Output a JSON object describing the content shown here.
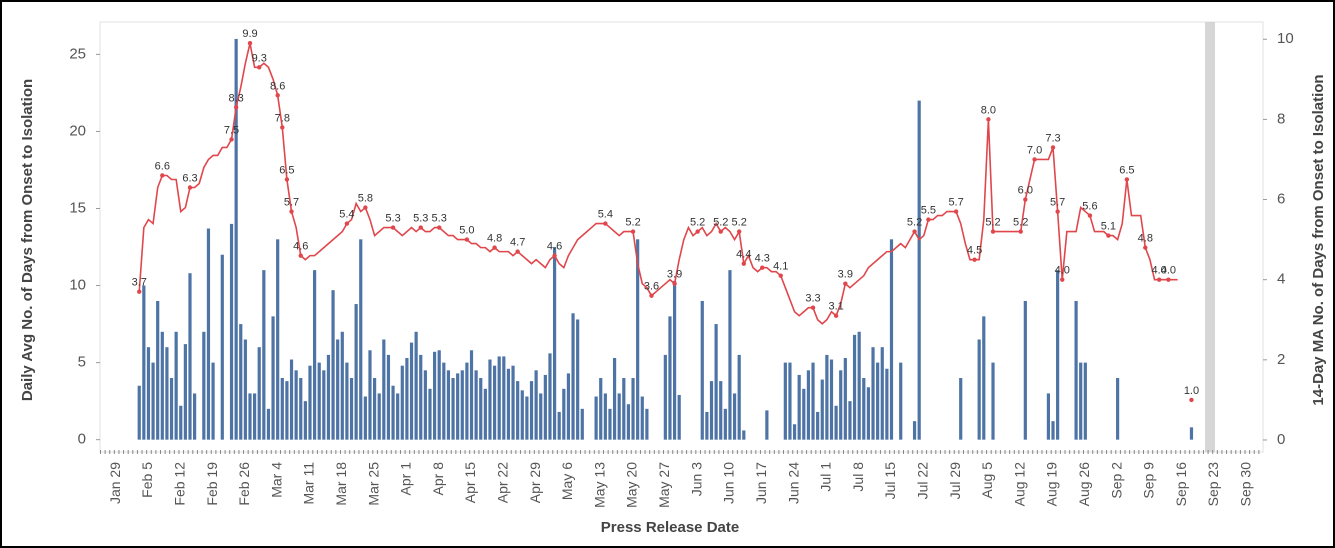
{
  "chart_data": {
    "type": "combo",
    "xlabel": "Press Release Date",
    "ylabel": "Daily Avg No. of Days from Onset to Isolation",
    "y2label": "14-Day MA No. of Days from Onset to Isolation",
    "ylim": [
      -0.8,
      27.1
    ],
    "yticks": [
      0,
      5,
      10,
      15,
      20,
      25
    ],
    "y2lim": [
      -0.3,
      10.43
    ],
    "y2ticks": [
      0,
      2,
      4,
      6,
      8,
      10
    ],
    "categories": [
      null,
      null,
      null,
      "Jan 29",
      null,
      null,
      null,
      null,
      null,
      null,
      "Feb 5",
      null,
      null,
      null,
      null,
      null,
      null,
      "Feb 12",
      null,
      null,
      null,
      null,
      null,
      null,
      "Feb 19",
      null,
      null,
      null,
      null,
      null,
      null,
      "Feb 26",
      null,
      null,
      null,
      null,
      null,
      null,
      "Mar 4",
      null,
      null,
      null,
      null,
      null,
      null,
      "Mar 11",
      null,
      null,
      null,
      null,
      null,
      null,
      "Mar 18",
      null,
      null,
      null,
      null,
      null,
      null,
      "Mar 25",
      null,
      null,
      null,
      null,
      null,
      null,
      "Apr 1",
      null,
      null,
      null,
      null,
      null,
      null,
      "Apr 8",
      null,
      null,
      null,
      null,
      null,
      null,
      "Apr 15",
      null,
      null,
      null,
      null,
      null,
      null,
      "Apr 22",
      null,
      null,
      null,
      null,
      null,
      null,
      "Apr 29",
      null,
      null,
      null,
      null,
      null,
      null,
      "May 6",
      null,
      null,
      null,
      null,
      null,
      null,
      "May 13",
      null,
      null,
      null,
      null,
      null,
      null,
      "May 20",
      null,
      null,
      null,
      null,
      null,
      null,
      "May 27",
      null,
      null,
      null,
      null,
      null,
      null,
      "Jun 3",
      null,
      null,
      null,
      null,
      null,
      null,
      "Jun 10",
      null,
      null,
      null,
      null,
      null,
      null,
      "Jun 17",
      null,
      null,
      null,
      null,
      null,
      null,
      "Jun 24",
      null,
      null,
      null,
      null,
      null,
      null,
      "Jul 1",
      null,
      null,
      null,
      null,
      null,
      null,
      "Jul 8",
      null,
      null,
      null,
      null,
      null,
      null,
      "Jul 15",
      null,
      null,
      null,
      null,
      null,
      null,
      "Jul 22",
      null,
      null,
      null,
      null,
      null,
      null,
      "Jul 29",
      null,
      null,
      null,
      null,
      null,
      null,
      "Aug 5",
      null,
      null,
      null,
      null,
      null,
      null,
      "Aug 12",
      null,
      null,
      null,
      null,
      null,
      null,
      "Aug 19",
      null,
      null,
      null,
      null,
      null,
      null,
      "Aug 26",
      null,
      null,
      null,
      null,
      null,
      null,
      "Sep 2",
      null,
      null,
      null,
      null,
      null,
      null,
      "Sep 9",
      null,
      null,
      null,
      null,
      null,
      null,
      "Sep 16",
      null,
      null,
      null,
      null,
      null,
      null,
      "Sep 23",
      null,
      null,
      null,
      null,
      null,
      null,
      "Sep 30",
      null,
      null,
      null
    ],
    "series": [
      {
        "type": "bar",
        "color": "#4e74a6",
        "values": [
          null,
          null,
          null,
          null,
          null,
          null,
          null,
          null,
          3.5,
          10,
          6,
          5,
          9,
          7,
          6,
          4,
          7,
          2.2,
          6.2,
          10.8,
          3,
          null,
          7,
          13.7,
          5,
          null,
          12,
          null,
          14,
          26,
          7.5,
          6.5,
          3,
          3,
          6,
          11,
          2,
          8,
          13,
          4,
          3.8,
          5.2,
          4.5,
          4,
          2.5,
          4.8,
          11,
          5,
          4.5,
          5.5,
          9.7,
          6.5,
          7,
          5,
          4,
          8.8,
          13,
          2.8,
          5.8,
          4,
          3,
          6.5,
          5.5,
          3.5,
          3,
          4.8,
          5.3,
          6.3,
          7,
          5.5,
          4.5,
          3.3,
          5.7,
          5.8,
          5,
          4.5,
          4,
          4.3,
          4.5,
          5,
          5.8,
          4.5,
          4,
          3.3,
          5.2,
          4.8,
          5.4,
          5.4,
          4.6,
          4.8,
          3.8,
          3.2,
          2.8,
          3.8,
          4.5,
          3,
          4.2,
          5.6,
          12.5,
          1.8,
          3.3,
          4.3,
          8.2,
          7.8,
          2,
          null,
          null,
          2.8,
          4,
          3,
          2,
          5.3,
          3,
          4,
          2.3,
          4,
          13,
          2.8,
          2,
          null,
          null,
          null,
          5.5,
          8,
          10.3,
          2.9,
          null,
          null,
          null,
          null,
          9,
          1.8,
          3.8,
          7.5,
          3.8,
          2,
          11,
          3,
          5.5,
          0.6,
          null,
          null,
          null,
          null,
          1.9,
          null,
          null,
          null,
          5,
          5,
          1,
          4.2,
          3.3,
          4.5,
          5,
          1.8,
          3.9,
          5.5,
          5.2,
          2.2,
          4.5,
          5.3,
          2.5,
          6.8,
          7,
          4,
          3.4,
          6,
          5,
          6,
          4.6,
          13,
          null,
          5,
          null,
          null,
          1.2,
          22,
          null,
          null,
          null,
          null,
          null,
          null,
          null,
          null,
          4,
          null,
          null,
          null,
          6.5,
          8,
          null,
          5,
          null,
          null,
          null,
          null,
          null,
          null,
          9,
          null,
          null,
          null,
          null,
          3,
          1.2,
          11,
          null,
          null,
          null,
          9,
          5,
          5,
          null,
          null,
          null,
          null,
          null,
          null,
          4,
          null,
          null,
          null,
          null,
          null,
          null,
          null,
          null,
          null,
          null,
          null,
          null,
          null,
          null,
          null,
          0.8,
          null,
          null,
          null,
          null,
          null,
          null,
          null,
          null,
          null,
          null,
          null,
          null,
          null,
          null,
          null
        ]
      },
      {
        "type": "line",
        "axis": "y2",
        "color": "#e0474c",
        "values": [
          null,
          null,
          null,
          null,
          null,
          null,
          null,
          null,
          3.7,
          5.3,
          5.5,
          5.4,
          6.3,
          6.6,
          6.6,
          6.5,
          6.5,
          5.7,
          5.8,
          6.3,
          6.3,
          6.4,
          6.8,
          7.0,
          7.1,
          7.1,
          7.3,
          7.3,
          7.5,
          8.3,
          8.8,
          9.4,
          9.9,
          9.3,
          9.3,
          9.4,
          9.3,
          9.0,
          8.6,
          7.8,
          6.5,
          5.7,
          5.3,
          4.6,
          4.5,
          4.6,
          4.6,
          4.7,
          4.8,
          4.9,
          5.0,
          5.1,
          5.2,
          5.4,
          5.5,
          5.9,
          5.7,
          5.8,
          5.5,
          5.1,
          5.2,
          5.3,
          5.3,
          5.3,
          5.2,
          5.1,
          5.2,
          5.3,
          5.2,
          5.3,
          5.2,
          5.2,
          5.3,
          5.3,
          5.2,
          5.1,
          5.1,
          5.0,
          5.0,
          5.0,
          4.9,
          4.9,
          4.8,
          4.8,
          4.7,
          4.8,
          4.7,
          4.7,
          4.7,
          4.6,
          4.7,
          4.6,
          4.5,
          4.4,
          4.5,
          4.4,
          4.3,
          4.5,
          4.6,
          4.4,
          4.3,
          4.6,
          4.8,
          5.0,
          5.1,
          5.2,
          5.3,
          5.4,
          5.4,
          5.4,
          5.3,
          5.2,
          5.1,
          5.2,
          5.2,
          5.2,
          4.4,
          3.9,
          3.8,
          3.6,
          3.7,
          3.8,
          3.9,
          4.0,
          3.9,
          4.5,
          5.0,
          5.3,
          5.1,
          5.2,
          5.3,
          5.1,
          5.2,
          5.4,
          5.2,
          5.3,
          5.2,
          5.0,
          5.2,
          4.4,
          4.6,
          4.3,
          4.2,
          4.3,
          4.3,
          4.2,
          4.2,
          4.1,
          3.8,
          3.5,
          3.2,
          3.1,
          3.2,
          3.3,
          3.3,
          3.0,
          2.9,
          3.0,
          3.2,
          3.1,
          3.4,
          3.9,
          3.8,
          3.9,
          4.0,
          4.1,
          4.3,
          4.4,
          4.5,
          4.6,
          4.7,
          4.7,
          4.8,
          4.9,
          4.8,
          5.0,
          5.2,
          5.0,
          5.1,
          5.5,
          5.5,
          5.6,
          5.6,
          5.7,
          5.7,
          5.7,
          5.4,
          4.9,
          4.5,
          4.5,
          4.5,
          5.5,
          8.0,
          5.2,
          5.2,
          5.2,
          5.2,
          5.2,
          5.2,
          5.2,
          6.0,
          6.5,
          7.0,
          7.0,
          7.0,
          7.0,
          7.3,
          5.7,
          4.0,
          5.2,
          5.2,
          5.2,
          5.8,
          5.7,
          5.6,
          5.2,
          5.2,
          5.2,
          5.1,
          5.1,
          5.0,
          5.4,
          6.5,
          5.6,
          5.6,
          5.6,
          4.8,
          4.5,
          4.0,
          4.0,
          4.0,
          4.0,
          4.0,
          4.0,
          null,
          null,
          1.0,
          null,
          null,
          null,
          null,
          null,
          null,
          null,
          null,
          null,
          null,
          null,
          null,
          null,
          null,
          null
        ],
        "value_labels": [
          null,
          null,
          null,
          null,
          null,
          null,
          null,
          null,
          "3.7",
          null,
          null,
          null,
          null,
          "6.6",
          null,
          null,
          null,
          null,
          null,
          "6.3",
          null,
          null,
          null,
          null,
          null,
          null,
          null,
          null,
          "7.5",
          "8.3",
          null,
          null,
          "9.9",
          null,
          "9.3",
          null,
          null,
          null,
          "8.6",
          "7.8",
          "6.5",
          "5.7",
          null,
          "4.6",
          null,
          null,
          null,
          null,
          null,
          null,
          null,
          null,
          null,
          "5.4",
          null,
          null,
          null,
          "5.8",
          null,
          null,
          null,
          null,
          null,
          "5.3",
          null,
          null,
          null,
          null,
          null,
          "5.3",
          null,
          null,
          null,
          "5.3",
          null,
          null,
          null,
          null,
          null,
          "5.0",
          null,
          null,
          null,
          null,
          null,
          "4.8",
          null,
          null,
          null,
          null,
          "4.7",
          null,
          null,
          null,
          null,
          null,
          null,
          null,
          "4.6",
          null,
          null,
          null,
          null,
          null,
          null,
          null,
          null,
          null,
          null,
          "5.4",
          null,
          null,
          null,
          null,
          null,
          "5.2",
          null,
          null,
          null,
          "3.6",
          null,
          null,
          null,
          null,
          "3.9",
          null,
          null,
          null,
          null,
          "5.2",
          null,
          null,
          null,
          null,
          "5.2",
          null,
          null,
          null,
          "5.2",
          "4.4",
          null,
          null,
          null,
          "4.3",
          null,
          null,
          null,
          "4.1",
          null,
          null,
          null,
          null,
          null,
          null,
          "3.3",
          null,
          null,
          null,
          null,
          "3.1",
          null,
          "3.9",
          null,
          null,
          null,
          null,
          null,
          null,
          null,
          null,
          null,
          null,
          null,
          null,
          null,
          null,
          "5.2",
          null,
          null,
          "5.5",
          null,
          null,
          null,
          null,
          null,
          "5.7",
          null,
          null,
          null,
          "4.5",
          null,
          null,
          "8.0",
          "5.2",
          null,
          null,
          null,
          null,
          null,
          "5.2",
          "6.0",
          null,
          "7.0",
          null,
          null,
          null,
          "7.3",
          "5.7",
          "4.0",
          null,
          null,
          null,
          null,
          null,
          "5.6",
          null,
          null,
          null,
          "5.1",
          null,
          null,
          null,
          "6.5",
          null,
          null,
          null,
          "4.8",
          null,
          null,
          "4.0",
          null,
          "4.0",
          null,
          null,
          null,
          null,
          "1.0",
          null,
          null,
          null,
          null,
          null,
          null,
          null,
          null,
          null,
          null,
          null,
          null,
          null,
          null,
          null
        ]
      }
    ]
  }
}
